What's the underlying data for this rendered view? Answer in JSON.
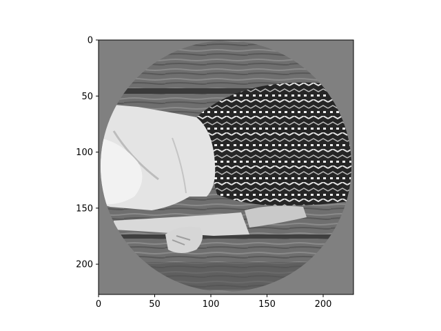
{
  "figure": {
    "image_description_icon": "grayscale-photo-circular-mask",
    "colors": {
      "background": "#ffffff",
      "mask_gray": "#808080",
      "axis": "#000000"
    },
    "x_axis": {
      "range": [
        0,
        227
      ],
      "ticks": [
        {
          "value": 0,
          "label": "0"
        },
        {
          "value": 50,
          "label": "50"
        },
        {
          "value": 100,
          "label": "100"
        },
        {
          "value": 150,
          "label": "150"
        },
        {
          "value": 200,
          "label": "200"
        }
      ]
    },
    "y_axis": {
      "range": [
        0,
        227
      ],
      "inverted": true,
      "ticks": [
        {
          "value": 0,
          "label": "0"
        },
        {
          "value": 50,
          "label": "50"
        },
        {
          "value": 100,
          "label": "100"
        },
        {
          "value": 150,
          "label": "150"
        },
        {
          "value": 200,
          "label": "200"
        }
      ]
    }
  }
}
